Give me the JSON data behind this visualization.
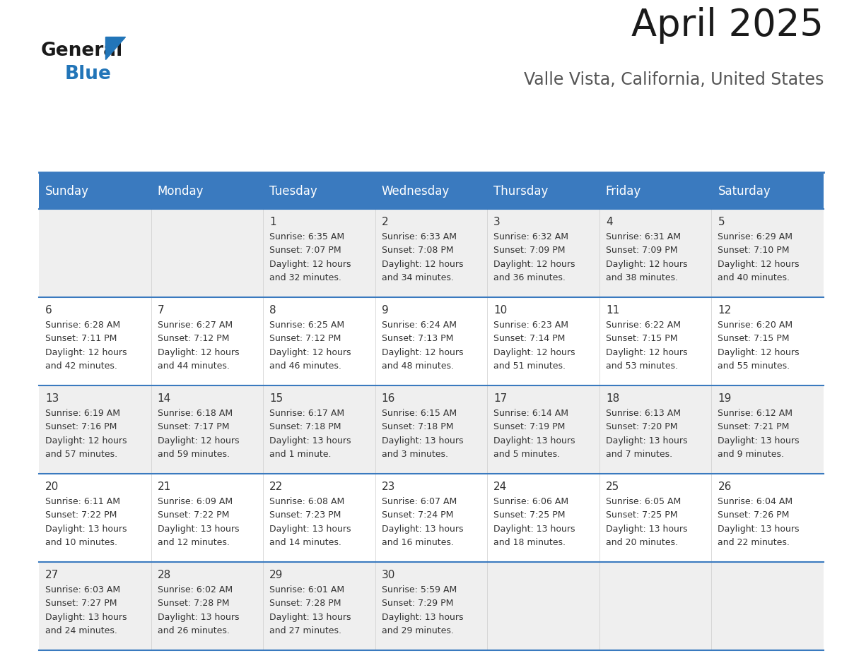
{
  "title": "April 2025",
  "subtitle": "Valle Vista, California, United States",
  "header_bg_color": "#3a7abf",
  "header_text_color": "#ffffff",
  "row_bg_color_odd": "#efefef",
  "row_bg_color_even": "#ffffff",
  "cell_border_color": "#3a7abf",
  "day_names": [
    "Sunday",
    "Monday",
    "Tuesday",
    "Wednesday",
    "Thursday",
    "Friday",
    "Saturday"
  ],
  "weeks": [
    [
      {
        "day": "",
        "sunrise": "",
        "sunset": "",
        "daylight_line1": "",
        "daylight_line2": ""
      },
      {
        "day": "",
        "sunrise": "",
        "sunset": "",
        "daylight_line1": "",
        "daylight_line2": ""
      },
      {
        "day": "1",
        "sunrise": "6:35 AM",
        "sunset": "7:07 PM",
        "daylight_line1": "Daylight: 12 hours",
        "daylight_line2": "and 32 minutes."
      },
      {
        "day": "2",
        "sunrise": "6:33 AM",
        "sunset": "7:08 PM",
        "daylight_line1": "Daylight: 12 hours",
        "daylight_line2": "and 34 minutes."
      },
      {
        "day": "3",
        "sunrise": "6:32 AM",
        "sunset": "7:09 PM",
        "daylight_line1": "Daylight: 12 hours",
        "daylight_line2": "and 36 minutes."
      },
      {
        "day": "4",
        "sunrise": "6:31 AM",
        "sunset": "7:09 PM",
        "daylight_line1": "Daylight: 12 hours",
        "daylight_line2": "and 38 minutes."
      },
      {
        "day": "5",
        "sunrise": "6:29 AM",
        "sunset": "7:10 PM",
        "daylight_line1": "Daylight: 12 hours",
        "daylight_line2": "and 40 minutes."
      }
    ],
    [
      {
        "day": "6",
        "sunrise": "6:28 AM",
        "sunset": "7:11 PM",
        "daylight_line1": "Daylight: 12 hours",
        "daylight_line2": "and 42 minutes."
      },
      {
        "day": "7",
        "sunrise": "6:27 AM",
        "sunset": "7:12 PM",
        "daylight_line1": "Daylight: 12 hours",
        "daylight_line2": "and 44 minutes."
      },
      {
        "day": "8",
        "sunrise": "6:25 AM",
        "sunset": "7:12 PM",
        "daylight_line1": "Daylight: 12 hours",
        "daylight_line2": "and 46 minutes."
      },
      {
        "day": "9",
        "sunrise": "6:24 AM",
        "sunset": "7:13 PM",
        "daylight_line1": "Daylight: 12 hours",
        "daylight_line2": "and 48 minutes."
      },
      {
        "day": "10",
        "sunrise": "6:23 AM",
        "sunset": "7:14 PM",
        "daylight_line1": "Daylight: 12 hours",
        "daylight_line2": "and 51 minutes."
      },
      {
        "day": "11",
        "sunrise": "6:22 AM",
        "sunset": "7:15 PM",
        "daylight_line1": "Daylight: 12 hours",
        "daylight_line2": "and 53 minutes."
      },
      {
        "day": "12",
        "sunrise": "6:20 AM",
        "sunset": "7:15 PM",
        "daylight_line1": "Daylight: 12 hours",
        "daylight_line2": "and 55 minutes."
      }
    ],
    [
      {
        "day": "13",
        "sunrise": "6:19 AM",
        "sunset": "7:16 PM",
        "daylight_line1": "Daylight: 12 hours",
        "daylight_line2": "and 57 minutes."
      },
      {
        "day": "14",
        "sunrise": "6:18 AM",
        "sunset": "7:17 PM",
        "daylight_line1": "Daylight: 12 hours",
        "daylight_line2": "and 59 minutes."
      },
      {
        "day": "15",
        "sunrise": "6:17 AM",
        "sunset": "7:18 PM",
        "daylight_line1": "Daylight: 13 hours",
        "daylight_line2": "and 1 minute."
      },
      {
        "day": "16",
        "sunrise": "6:15 AM",
        "sunset": "7:18 PM",
        "daylight_line1": "Daylight: 13 hours",
        "daylight_line2": "and 3 minutes."
      },
      {
        "day": "17",
        "sunrise": "6:14 AM",
        "sunset": "7:19 PM",
        "daylight_line1": "Daylight: 13 hours",
        "daylight_line2": "and 5 minutes."
      },
      {
        "day": "18",
        "sunrise": "6:13 AM",
        "sunset": "7:20 PM",
        "daylight_line1": "Daylight: 13 hours",
        "daylight_line2": "and 7 minutes."
      },
      {
        "day": "19",
        "sunrise": "6:12 AM",
        "sunset": "7:21 PM",
        "daylight_line1": "Daylight: 13 hours",
        "daylight_line2": "and 9 minutes."
      }
    ],
    [
      {
        "day": "20",
        "sunrise": "6:11 AM",
        "sunset": "7:22 PM",
        "daylight_line1": "Daylight: 13 hours",
        "daylight_line2": "and 10 minutes."
      },
      {
        "day": "21",
        "sunrise": "6:09 AM",
        "sunset": "7:22 PM",
        "daylight_line1": "Daylight: 13 hours",
        "daylight_line2": "and 12 minutes."
      },
      {
        "day": "22",
        "sunrise": "6:08 AM",
        "sunset": "7:23 PM",
        "daylight_line1": "Daylight: 13 hours",
        "daylight_line2": "and 14 minutes."
      },
      {
        "day": "23",
        "sunrise": "6:07 AM",
        "sunset": "7:24 PM",
        "daylight_line1": "Daylight: 13 hours",
        "daylight_line2": "and 16 minutes."
      },
      {
        "day": "24",
        "sunrise": "6:06 AM",
        "sunset": "7:25 PM",
        "daylight_line1": "Daylight: 13 hours",
        "daylight_line2": "and 18 minutes."
      },
      {
        "day": "25",
        "sunrise": "6:05 AM",
        "sunset": "7:25 PM",
        "daylight_line1": "Daylight: 13 hours",
        "daylight_line2": "and 20 minutes."
      },
      {
        "day": "26",
        "sunrise": "6:04 AM",
        "sunset": "7:26 PM",
        "daylight_line1": "Daylight: 13 hours",
        "daylight_line2": "and 22 minutes."
      }
    ],
    [
      {
        "day": "27",
        "sunrise": "6:03 AM",
        "sunset": "7:27 PM",
        "daylight_line1": "Daylight: 13 hours",
        "daylight_line2": "and 24 minutes."
      },
      {
        "day": "28",
        "sunrise": "6:02 AM",
        "sunset": "7:28 PM",
        "daylight_line1": "Daylight: 13 hours",
        "daylight_line2": "and 26 minutes."
      },
      {
        "day": "29",
        "sunrise": "6:01 AM",
        "sunset": "7:28 PM",
        "daylight_line1": "Daylight: 13 hours",
        "daylight_line2": "and 27 minutes."
      },
      {
        "day": "30",
        "sunrise": "5:59 AM",
        "sunset": "7:29 PM",
        "daylight_line1": "Daylight: 13 hours",
        "daylight_line2": "and 29 minutes."
      },
      {
        "day": "",
        "sunrise": "",
        "sunset": "",
        "daylight_line1": "",
        "daylight_line2": ""
      },
      {
        "day": "",
        "sunrise": "",
        "sunset": "",
        "daylight_line1": "",
        "daylight_line2": ""
      },
      {
        "day": "",
        "sunrise": "",
        "sunset": "",
        "daylight_line1": "",
        "daylight_line2": ""
      }
    ]
  ],
  "logo_color_general": "#1a1a1a",
  "logo_color_blue": "#2275b8",
  "logo_triangle_color": "#2275b8",
  "title_fontsize": 38,
  "subtitle_fontsize": 17,
  "header_fontsize": 12,
  "day_num_fontsize": 11,
  "cell_text_fontsize": 9
}
